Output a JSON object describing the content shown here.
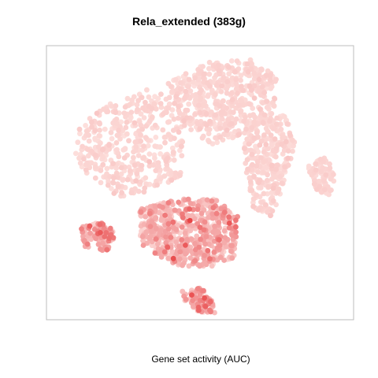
{
  "chart_data": {
    "type": "scatter",
    "title": "Rela_extended (383g)",
    "xlabel": "Gene set activity (AUC)",
    "ylabel": "",
    "axes_visible": false,
    "grid": false,
    "legend": "none",
    "color_scale": {
      "low": "#fde0dd",
      "mid": "#f4a6a6",
      "high": "#e31a1c",
      "max": "#b30000"
    },
    "note": "",
    "clusters": [
      {
        "name": "upper-left",
        "n": 420,
        "shape": [
          [
            -0.78,
            0.42
          ],
          [
            -0.58,
            0.58
          ],
          [
            -0.35,
            0.68
          ],
          [
            -0.18,
            0.62
          ],
          [
            -0.1,
            0.35
          ],
          [
            -0.12,
            0.05
          ],
          [
            -0.3,
            -0.05
          ],
          [
            -0.55,
            -0.12
          ],
          [
            -0.72,
            0.02
          ],
          [
            -0.82,
            0.2
          ]
        ],
        "auc_mean": 0.05,
        "auc_sd": 0.03
      },
      {
        "name": "upper-center",
        "n": 520,
        "shape": [
          [
            -0.22,
            0.72
          ],
          [
            0.05,
            0.88
          ],
          [
            0.35,
            0.9
          ],
          [
            0.52,
            0.75
          ],
          [
            0.48,
            0.5
          ],
          [
            0.28,
            0.35
          ],
          [
            0.08,
            0.28
          ],
          [
            -0.12,
            0.42
          ]
        ],
        "auc_mean": 0.05,
        "auc_sd": 0.03
      },
      {
        "name": "right-band",
        "n": 300,
        "shape": [
          [
            0.35,
            0.45
          ],
          [
            0.55,
            0.5
          ],
          [
            0.62,
            0.3
          ],
          [
            0.55,
            0.0
          ],
          [
            0.48,
            -0.25
          ],
          [
            0.35,
            -0.2
          ],
          [
            0.3,
            0.05
          ],
          [
            0.28,
            0.25
          ]
        ],
        "auc_mean": 0.05,
        "auc_sd": 0.03
      },
      {
        "name": "far-right",
        "n": 90,
        "shape": [
          [
            0.7,
            0.12
          ],
          [
            0.82,
            0.2
          ],
          [
            0.88,
            0.05
          ],
          [
            0.85,
            -0.1
          ],
          [
            0.75,
            -0.05
          ]
        ],
        "auc_mean": 0.05,
        "auc_sd": 0.02
      },
      {
        "name": "bottom-center",
        "n": 620,
        "shape": [
          [
            -0.42,
            -0.2
          ],
          [
            -0.15,
            -0.12
          ],
          [
            0.1,
            -0.12
          ],
          [
            0.25,
            -0.25
          ],
          [
            0.22,
            -0.55
          ],
          [
            0.05,
            -0.62
          ],
          [
            -0.2,
            -0.6
          ],
          [
            -0.38,
            -0.45
          ]
        ],
        "auc_mean": 0.22,
        "auc_sd": 0.12
      },
      {
        "name": "bottom-left",
        "n": 110,
        "shape": [
          [
            -0.78,
            -0.32
          ],
          [
            -0.62,
            -0.28
          ],
          [
            -0.55,
            -0.38
          ],
          [
            -0.6,
            -0.5
          ],
          [
            -0.75,
            -0.48
          ]
        ],
        "auc_mean": 0.25,
        "auc_sd": 0.12
      },
      {
        "name": "bottom-tail",
        "n": 90,
        "shape": [
          [
            -0.12,
            -0.78
          ],
          [
            0.0,
            -0.76
          ],
          [
            0.08,
            -0.85
          ],
          [
            0.1,
            -0.95
          ],
          [
            -0.02,
            -0.95
          ],
          [
            -0.1,
            -0.86
          ]
        ],
        "auc_mean": 0.25,
        "auc_sd": 0.13
      }
    ],
    "xlim": [
      -1,
      1
    ],
    "ylim": [
      -1,
      1
    ]
  }
}
